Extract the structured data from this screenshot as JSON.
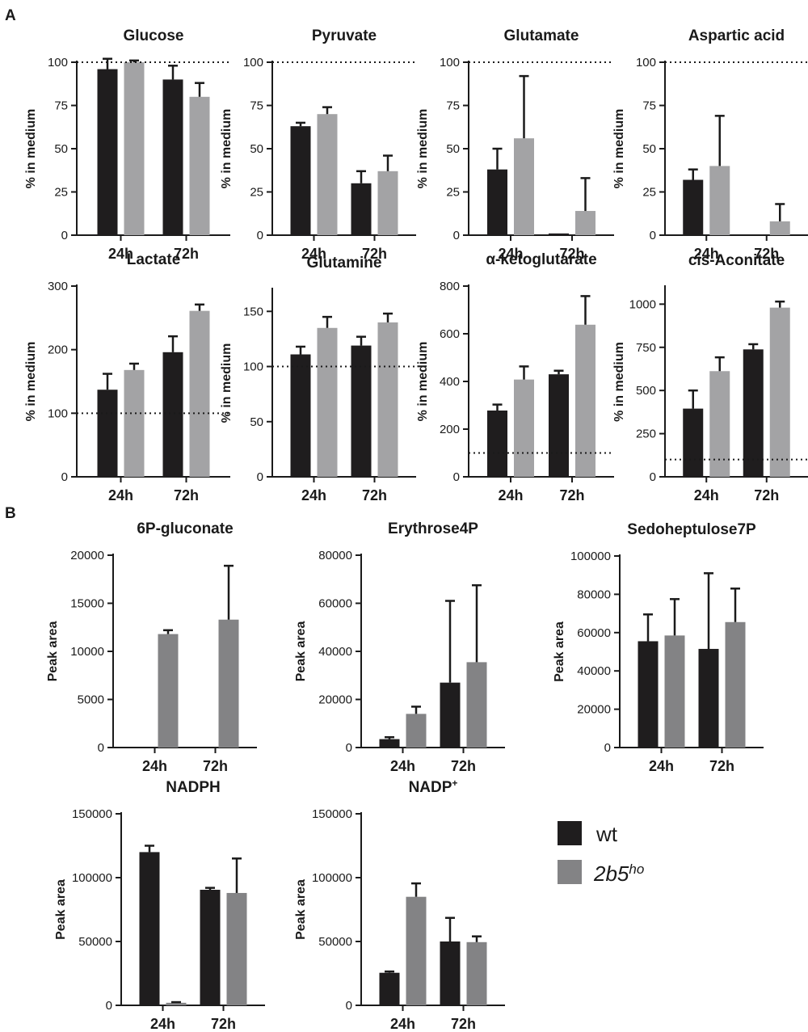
{
  "panels": {
    "A": "A",
    "B": "B"
  },
  "legend": {
    "wt": {
      "label": "wt",
      "color": "#1f1d1e"
    },
    "mut": {
      "label": "2b5",
      "superscript": "ho",
      "color_A": "#a3a3a5",
      "color_B": "#838385"
    }
  },
  "chart_data": [
    {
      "id": "glucose",
      "panel": "A",
      "type": "bar",
      "title": "Glucose",
      "ylabel": "% in medium",
      "categories": [
        "24h",
        "72h"
      ],
      "ylim": [
        0,
        100
      ],
      "yticks": [
        0,
        25,
        50,
        75,
        100
      ],
      "ref_line": 100,
      "series": [
        {
          "name": "wt",
          "values": [
            96,
            90
          ],
          "errors": [
            6,
            8
          ]
        },
        {
          "name": "2b5ho",
          "values": [
            100,
            80
          ],
          "errors": [
            1,
            8
          ]
        }
      ]
    },
    {
      "id": "pyruvate",
      "panel": "A",
      "type": "bar",
      "title": "Pyruvate",
      "ylabel": "% in medium",
      "categories": [
        "24h",
        "72h"
      ],
      "ylim": [
        0,
        100
      ],
      "yticks": [
        0,
        25,
        50,
        75,
        100
      ],
      "ref_line": 100,
      "series": [
        {
          "name": "wt",
          "values": [
            63,
            30
          ],
          "errors": [
            2,
            7
          ]
        },
        {
          "name": "2b5ho",
          "values": [
            70,
            37
          ],
          "errors": [
            4,
            9
          ]
        }
      ]
    },
    {
      "id": "glutamate",
      "panel": "A",
      "type": "bar",
      "title": "Glutamate",
      "ylabel": "% in medium",
      "categories": [
        "24h",
        "72h"
      ],
      "ylim": [
        0,
        100
      ],
      "yticks": [
        0,
        25,
        50,
        75,
        100
      ],
      "ref_line": 100,
      "series": [
        {
          "name": "wt",
          "values": [
            38,
            1
          ],
          "errors": [
            12,
            0
          ]
        },
        {
          "name": "2b5ho",
          "values": [
            56,
            14
          ],
          "errors": [
            36,
            19
          ]
        }
      ]
    },
    {
      "id": "aspartic",
      "panel": "A",
      "type": "bar",
      "title": "Aspartic acid",
      "ylabel": "% in medium",
      "categories": [
        "24h",
        "72h"
      ],
      "ylim": [
        0,
        100
      ],
      "yticks": [
        0,
        25,
        50,
        75,
        100
      ],
      "ref_line": 100,
      "series": [
        {
          "name": "wt",
          "values": [
            32,
            0
          ],
          "errors": [
            6,
            0
          ]
        },
        {
          "name": "2b5ho",
          "values": [
            40,
            8
          ],
          "errors": [
            29,
            10
          ]
        }
      ]
    },
    {
      "id": "lactate",
      "panel": "A",
      "type": "bar",
      "title": "Lactate",
      "ylabel": "% in medium",
      "categories": [
        "24h",
        "72h"
      ],
      "ylim": [
        0,
        300
      ],
      "yticks": [
        0,
        100,
        200,
        300
      ],
      "ref_line": 100,
      "series": [
        {
          "name": "wt",
          "values": [
            137,
            196
          ],
          "errors": [
            25,
            25
          ]
        },
        {
          "name": "2b5ho",
          "values": [
            168,
            261
          ],
          "errors": [
            10,
            10
          ]
        }
      ]
    },
    {
      "id": "glutamine",
      "panel": "A",
      "type": "bar",
      "title": "Glutamine",
      "ylabel": "% in medium",
      "categories": [
        "24h",
        "72h"
      ],
      "ylim": [
        0,
        170
      ],
      "yticks": [
        0,
        50,
        100,
        150
      ],
      "ref_line": 100,
      "series": [
        {
          "name": "wt",
          "values": [
            111,
            119
          ],
          "errors": [
            7,
            8
          ]
        },
        {
          "name": "2b5ho",
          "values": [
            135,
            140
          ],
          "errors": [
            10,
            8
          ]
        }
      ]
    },
    {
      "id": "akg",
      "panel": "A",
      "type": "bar",
      "title": "α-ketoglutarate",
      "ylabel": "% in medium",
      "categories": [
        "24h",
        "72h"
      ],
      "ylim": [
        0,
        800
      ],
      "yticks": [
        0,
        200,
        400,
        600,
        800
      ],
      "ref_line": 100,
      "series": [
        {
          "name": "wt",
          "values": [
            278,
            430
          ],
          "errors": [
            25,
            15
          ]
        },
        {
          "name": "2b5ho",
          "values": [
            408,
            638
          ],
          "errors": [
            55,
            120
          ]
        }
      ]
    },
    {
      "id": "cisaconitate",
      "panel": "A",
      "type": "bar",
      "title": "cis-Aconitate",
      "ylabel": "% in medium",
      "categories": [
        "24h",
        "72h"
      ],
      "ylim": [
        0,
        1100
      ],
      "yticks": [
        0,
        250,
        500,
        750,
        1000
      ],
      "ref_line": 100,
      "series": [
        {
          "name": "wt",
          "values": [
            395,
            738
          ],
          "errors": [
            105,
            30
          ]
        },
        {
          "name": "2b5ho",
          "values": [
            612,
            980
          ],
          "errors": [
            80,
            35
          ]
        }
      ]
    },
    {
      "id": "6pgluconate",
      "panel": "B",
      "type": "bar",
      "title": "6P-gluconate",
      "ylabel": "Peak area",
      "categories": [
        "24h",
        "72h"
      ],
      "ylim": [
        0,
        20000
      ],
      "yticks": [
        0,
        5000,
        10000,
        15000,
        20000
      ],
      "ref_line": null,
      "series": [
        {
          "name": "wt",
          "values": [
            0,
            0
          ],
          "errors": [
            0,
            0
          ]
        },
        {
          "name": "2b5ho",
          "values": [
            11800,
            13300
          ],
          "errors": [
            400,
            5600
          ]
        }
      ]
    },
    {
      "id": "erythrose4p",
      "panel": "B",
      "type": "bar",
      "title": "Erythrose4P",
      "ylabel": "Peak area",
      "categories": [
        "24h",
        "72h"
      ],
      "ylim": [
        0,
        80000
      ],
      "yticks": [
        0,
        20000,
        40000,
        60000,
        80000
      ],
      "ref_line": null,
      "series": [
        {
          "name": "wt",
          "values": [
            3500,
            27000
          ],
          "errors": [
            800,
            34000
          ]
        },
        {
          "name": "2b5ho",
          "values": [
            14000,
            35500
          ],
          "errors": [
            3000,
            32000
          ]
        }
      ]
    },
    {
      "id": "sedoheptulose7p",
      "panel": "B",
      "type": "bar",
      "title": "Sedoheptulose7P",
      "ylabel": "Peak area",
      "categories": [
        "24h",
        "72h"
      ],
      "ylim": [
        0,
        100000
      ],
      "yticks": [
        0,
        20000,
        40000,
        60000,
        80000,
        100000
      ],
      "ref_line": null,
      "series": [
        {
          "name": "wt",
          "values": [
            55500,
            51500
          ],
          "errors": [
            14000,
            39500
          ]
        },
        {
          "name": "2b5ho",
          "values": [
            58500,
            65500
          ],
          "errors": [
            19000,
            17500
          ]
        }
      ]
    },
    {
      "id": "nadph",
      "panel": "B",
      "type": "bar",
      "title": "NADPH",
      "ylabel": "Peak area",
      "categories": [
        "24h",
        "72h"
      ],
      "ylim": [
        0,
        150000
      ],
      "yticks": [
        0,
        50000,
        100000,
        150000
      ],
      "ref_line": null,
      "series": [
        {
          "name": "wt",
          "values": [
            120000,
            90500
          ],
          "errors": [
            5000,
            1500
          ]
        },
        {
          "name": "2b5ho",
          "values": [
            2000,
            88000
          ],
          "errors": [
            500,
            27000
          ]
        }
      ]
    },
    {
      "id": "nadp",
      "panel": "B",
      "type": "bar",
      "title": "NADP",
      "title_sup": "+",
      "ylabel": "Peak area",
      "categories": [
        "24h",
        "72h"
      ],
      "ylim": [
        0,
        150000
      ],
      "yticks": [
        0,
        50000,
        100000,
        150000
      ],
      "ref_line": null,
      "series": [
        {
          "name": "wt",
          "values": [
            25500,
            50000
          ],
          "errors": [
            1000,
            18500
          ]
        },
        {
          "name": "2b5ho",
          "values": [
            85000,
            49500
          ],
          "errors": [
            10500,
            4500
          ]
        }
      ]
    }
  ]
}
